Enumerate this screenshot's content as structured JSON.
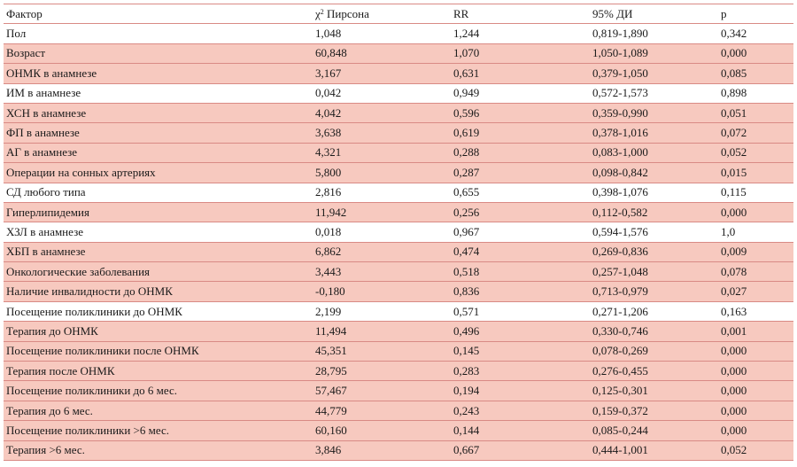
{
  "table": {
    "headers": {
      "factor": "Фактор",
      "chi_symbol": "χ",
      "chi_sup": "2",
      "chi_text": " Пирсона",
      "rr": "RR",
      "ci": "95% ДИ",
      "p": "p"
    },
    "rows": [
      {
        "factor": "Пол",
        "chi2": "1,048",
        "rr": "1,244",
        "ci": "0,819-1,890",
        "p": "0,342",
        "shaded": false
      },
      {
        "factor": "Возраст",
        "chi2": "60,848",
        "rr": "1,070",
        "ci": "1,050-1,089",
        "p": "0,000",
        "shaded": true
      },
      {
        "factor": "ОНМК в анамнезе",
        "chi2": "3,167",
        "rr": "0,631",
        "ci": "0,379-1,050",
        "p": "0,085",
        "shaded": true
      },
      {
        "factor": "ИМ в анамнезе",
        "chi2": "0,042",
        "rr": "0,949",
        "ci": "0,572-1,573",
        "p": "0,898",
        "shaded": false
      },
      {
        "factor": "ХСН в анамнезе",
        "chi2": "4,042",
        "rr": "0,596",
        "ci": "0,359-0,990",
        "p": "0,051",
        "shaded": true
      },
      {
        "factor": "ФП в анамнезе",
        "chi2": "3,638",
        "rr": "0,619",
        "ci": "0,378-1,016",
        "p": "0,072",
        "shaded": true
      },
      {
        "factor": "АГ в анамнезе",
        "chi2": "4,321",
        "rr": "0,288",
        "ci": "0,083-1,000",
        "p": "0,052",
        "shaded": true
      },
      {
        "factor": "Операции на сонных артериях",
        "chi2": "5,800",
        "rr": "0,287",
        "ci": "0,098-0,842",
        "p": "0,015",
        "shaded": true
      },
      {
        "factor": "СД любого типа",
        "chi2": "2,816",
        "rr": "0,655",
        "ci": "0,398-1,076",
        "p": "0,115",
        "shaded": false
      },
      {
        "factor": "Гиперлипидемия",
        "chi2": "11,942",
        "rr": "0,256",
        "ci": "0,112-0,582",
        "p": "0,000",
        "shaded": true
      },
      {
        "factor": "ХЗЛ в анамнезе",
        "chi2": "0,018",
        "rr": "0,967",
        "ci": "0,594-1,576",
        "p": "1,0",
        "shaded": false
      },
      {
        "factor": "ХБП в анамнезе",
        "chi2": "6,862",
        "rr": "0,474",
        "ci": "0,269-0,836",
        "p": "0,009",
        "shaded": true
      },
      {
        "factor": "Онкологические заболевания",
        "chi2": "3,443",
        "rr": "0,518",
        "ci": "0,257-1,048",
        "p": "0,078",
        "shaded": true
      },
      {
        "factor": "Наличие инвалидности до ОНМК",
        "chi2": "-0,180",
        "rr": "0,836",
        "ci": "0,713-0,979",
        "p": "0,027",
        "shaded": true
      },
      {
        "factor": "Посещение поликлиники до ОНМК",
        "chi2": "2,199",
        "rr": "0,571",
        "ci": "0,271-1,206",
        "p": "0,163",
        "shaded": false
      },
      {
        "factor": "Терапия до ОНМК",
        "chi2": "11,494",
        "rr": "0,496",
        "ci": "0,330-0,746",
        "p": "0,001",
        "shaded": true
      },
      {
        "factor": "Посещение поликлиники после ОНМК",
        "chi2": "45,351",
        "rr": "0,145",
        "ci": "0,078-0,269",
        "p": "0,000",
        "shaded": true
      },
      {
        "factor": "Терапия после ОНМК",
        "chi2": "28,795",
        "rr": "0,283",
        "ci": "0,276-0,455",
        "p": "0,000",
        "shaded": true
      },
      {
        "factor": "Посещение поликлиники до 6 мес.",
        "chi2": "57,467",
        "rr": "0,194",
        "ci": "0,125-0,301",
        "p": "0,000",
        "shaded": true
      },
      {
        "factor": "Терапия до 6 мес.",
        "chi2": "44,779",
        "rr": "0,243",
        "ci": "0,159-0,372",
        "p": "0,000",
        "shaded": true
      },
      {
        "factor": "Посещение поликлиники >6 мес.",
        "chi2": "60,160",
        "rr": "0,144",
        "ci": "0,085-0,244",
        "p": "0,000",
        "shaded": true
      },
      {
        "factor": "Терапия >6 мес.",
        "chi2": "3,846",
        "rr": "0,667",
        "ci": "0,444-1,001",
        "p": "0,052",
        "shaded": true
      }
    ]
  }
}
